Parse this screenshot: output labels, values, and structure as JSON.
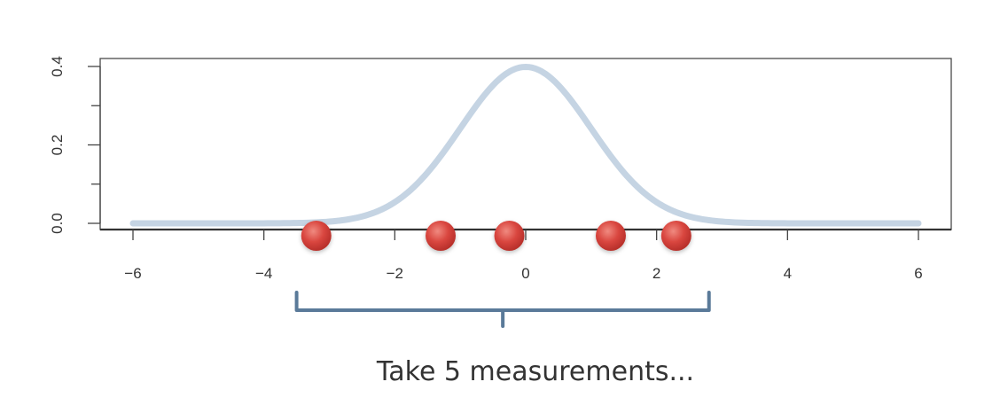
{
  "chart_data": {
    "type": "line",
    "xlim": [
      -6,
      6
    ],
    "ylim": [
      0,
      0.4
    ],
    "x_ticks": [
      "−6",
      "−4",
      "−2",
      "0",
      "2",
      "4",
      "6"
    ],
    "x_tick_values": [
      -6,
      -4,
      -2,
      0,
      2,
      4,
      6
    ],
    "y_ticks": [
      "0.0",
      "0.2",
      "0.4"
    ],
    "y_tick_values": [
      0,
      0.2,
      0.4
    ],
    "y_minor_tick_values": [
      0.1,
      0.3
    ],
    "curve": {
      "kind": "normal-density",
      "mean": 0,
      "sd": 1,
      "color": "#c5d4e3"
    },
    "points": {
      "x": [
        -3.2,
        -1.3,
        -0.25,
        1.3,
        2.3
      ],
      "y": [
        0,
        0,
        0,
        0,
        0
      ],
      "color": "#d9463f"
    },
    "bracket": {
      "from": -3.5,
      "to": 2.8,
      "color": "#5a7a99"
    },
    "grid": false,
    "legend": "none"
  },
  "caption": "Take 5 measurements..."
}
